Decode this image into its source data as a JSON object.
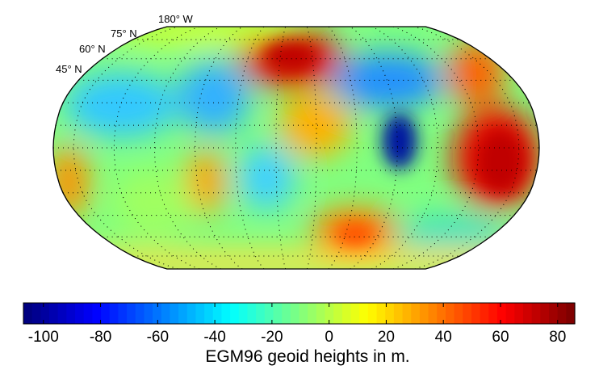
{
  "map": {
    "projection": "Robinson",
    "field": "geoid heights",
    "graticule": "dotted",
    "labels": {
      "lon_top": "180° W",
      "lat_75": "75° N",
      "lat_60": "60° N",
      "lat_45": "45° N"
    },
    "features": [
      {
        "region": "North Atlantic / Europe",
        "level": "high",
        "color": "#d00000"
      },
      {
        "region": "Indonesia / Western Pacific",
        "level": "high",
        "color": "#e01000"
      },
      {
        "region": "South Atlantic",
        "level": "moderately high",
        "color": "#ff7a00"
      },
      {
        "region": "Indian Ocean",
        "level": "very low",
        "color": "#0020b0"
      },
      {
        "region": "Caribbean / West Atlantic",
        "level": "low",
        "color": "#30b0ff"
      }
    ]
  },
  "colorbar": {
    "colormap": "jet",
    "range": [
      -107,
      86
    ],
    "ticks": [
      "-100",
      "-80",
      "-60",
      "-40",
      "-20",
      "0",
      "20",
      "40",
      "60",
      "80"
    ],
    "tick_values": [
      -100,
      -80,
      -60,
      -40,
      -20,
      0,
      20,
      40,
      60,
      80
    ],
    "label": "EGM96 geoid heights in m."
  }
}
